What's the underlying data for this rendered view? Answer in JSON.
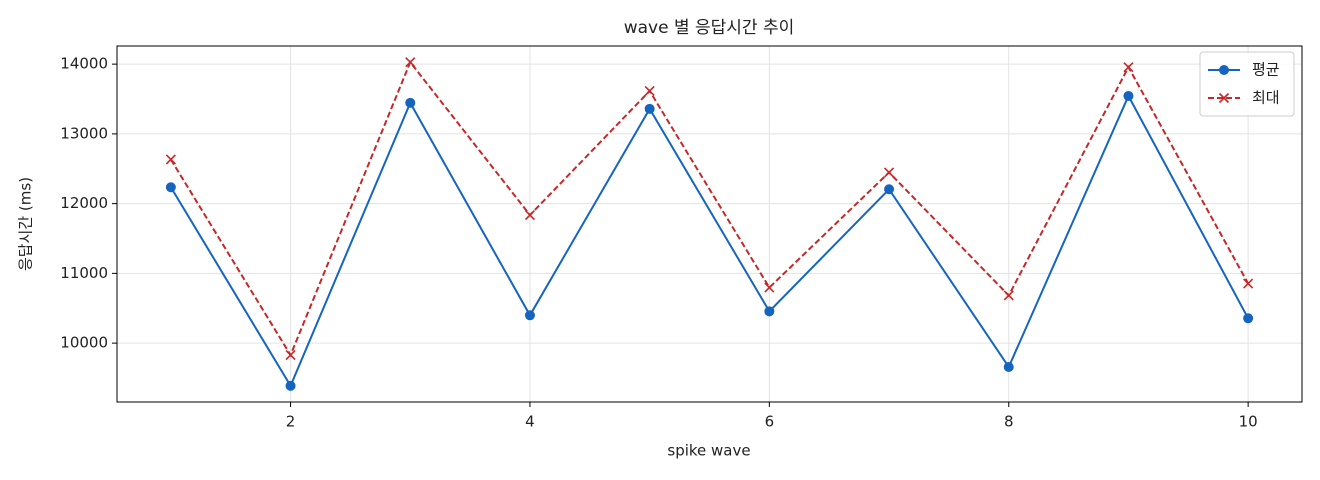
{
  "chart_data": {
    "type": "line",
    "title": "wave 별 응답시간 추이",
    "x_label": "spike wave",
    "y_label": "응답시간 (ms)",
    "x": [
      1,
      2,
      3,
      4,
      5,
      6,
      7,
      8,
      9,
      10
    ],
    "series": [
      {
        "name": "평균",
        "color": "#1565c0",
        "marker": "circle",
        "linestyle": "solid",
        "values": [
          12235,
          9388,
          13445,
          10399,
          13359,
          10456,
          12206,
          9658,
          13544,
          10356
        ]
      },
      {
        "name": "최대",
        "color": "#c62828",
        "marker": "x",
        "linestyle": "dashed",
        "values": [
          12633,
          9829,
          14028,
          11836,
          13616,
          10797,
          12448,
          10683,
          13957,
          10854
        ]
      }
    ],
    "xlim": [
      0.55,
      10.45
    ],
    "xticks": [
      2,
      4,
      6,
      8,
      10
    ],
    "ylim": [
      9156,
      14260
    ],
    "yticks": [
      10000,
      11000,
      12000,
      13000,
      14000
    ],
    "grid": true,
    "legend": "upper-right"
  }
}
